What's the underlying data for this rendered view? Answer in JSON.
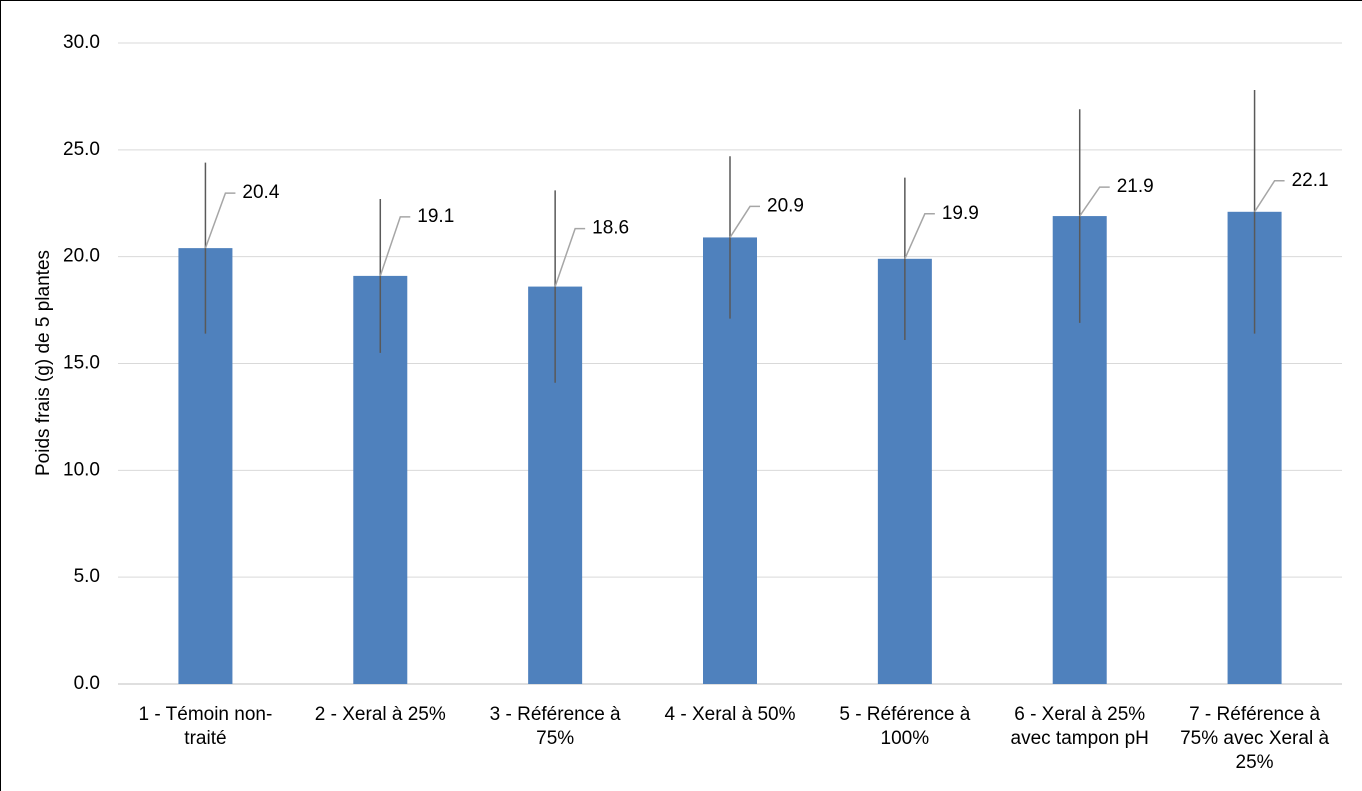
{
  "chart_data": {
    "type": "bar",
    "ylabel": "Poids frais (g) de 5 plantes",
    "categories": [
      "1 - Témoin non-traité",
      "2 - Xeral à 25%",
      "3 - Référence à 75%",
      "4 - Xeral à 50%",
      "5 - Référence à 100%",
      "6 - Xeral à 25% avec tampon pH",
      "7 - Référence à 75% avec Xeral à 25%"
    ],
    "values": [
      20.4,
      19.1,
      18.6,
      20.9,
      19.9,
      21.9,
      22.1
    ],
    "errors": [
      4.0,
      3.6,
      4.5,
      3.8,
      3.8,
      5.0,
      5.7
    ],
    "color": "#4f81bd",
    "ylim": [
      0,
      30
    ],
    "yticks": [
      {
        "value": 0,
        "label": "0.0"
      },
      {
        "value": 5,
        "label": "5.0"
      },
      {
        "value": 10,
        "label": "10.0"
      },
      {
        "value": 15,
        "label": "15.0"
      },
      {
        "value": 20,
        "label": "20.0"
      },
      {
        "value": 25,
        "label": "25.0"
      },
      {
        "value": 30,
        "label": "30.0"
      }
    ],
    "grid": true
  }
}
